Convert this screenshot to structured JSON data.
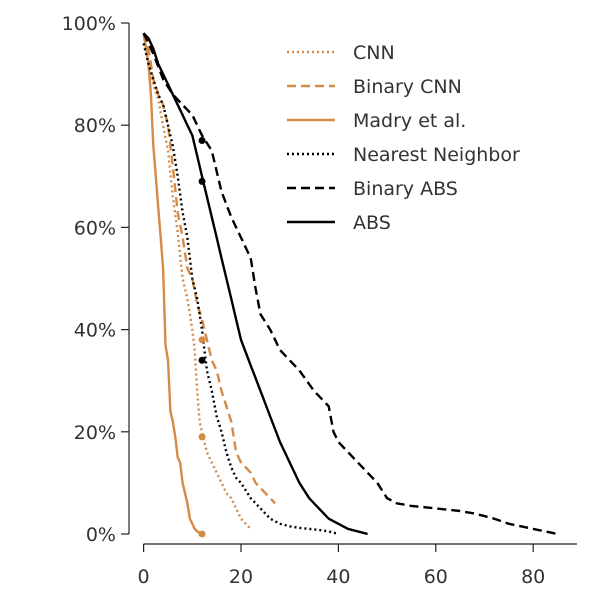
{
  "chart_data": {
    "type": "line",
    "title": "",
    "xlabel": "",
    "ylabel": "",
    "xlim": [
      -3,
      89
    ],
    "ylim": [
      0,
      100
    ],
    "x_ticks": [
      0,
      20,
      40,
      60,
      80
    ],
    "x_tick_labels": [
      "0",
      "20",
      "40",
      "60",
      "80"
    ],
    "y_ticks": [
      0,
      20,
      40,
      60,
      80,
      100
    ],
    "y_tick_labels": [
      "0%",
      "20%",
      "40%",
      "60%",
      "80%",
      "100%"
    ],
    "grid": false,
    "legend_position": "top-right",
    "series": [
      {
        "name": "CNN",
        "color": "#d58a45",
        "dash": "dotted",
        "x": [
          0,
          1,
          2,
          3,
          4,
          5,
          6,
          7,
          8,
          9,
          10,
          10.5,
          11,
          11.5,
          12,
          12.5,
          13,
          14,
          15,
          16,
          17,
          18,
          19,
          20,
          21,
          22
        ],
        "y": [
          98,
          92,
          88,
          85,
          80,
          75,
          66,
          59,
          50,
          46,
          40,
          36,
          28,
          22,
          20,
          18,
          16,
          14,
          12,
          10,
          8,
          7,
          5,
          3,
          2,
          1
        ]
      },
      {
        "name": "Binary CNN",
        "color": "#d58a45",
        "dash": "dashed",
        "x": [
          0,
          1,
          2,
          3,
          4,
          5,
          6,
          7,
          8,
          9,
          10,
          11,
          12,
          13,
          14,
          15,
          16,
          17,
          18,
          19,
          20,
          21,
          22,
          23,
          24,
          25,
          26,
          27
        ],
        "y": [
          98,
          95,
          89,
          86,
          84,
          80,
          72,
          63,
          58,
          52,
          50,
          45,
          42,
          38,
          34,
          32,
          28,
          25,
          22,
          16,
          14,
          13,
          12,
          10,
          9,
          8,
          7,
          6
        ]
      },
      {
        "name": "Madry et al.",
        "color": "#d58a45",
        "dash": "solid",
        "x": [
          0,
          1,
          1.5,
          2,
          2.5,
          3,
          3.5,
          4,
          4.5,
          5,
          5.5,
          6,
          6.5,
          7,
          7.5,
          8,
          8.5,
          9,
          9.5,
          10,
          10.5,
          11,
          12
        ],
        "y": [
          98,
          92,
          86,
          76,
          70,
          64,
          58,
          52,
          37,
          34,
          24,
          22,
          19,
          15,
          14,
          10,
          8,
          6,
          3,
          2,
          1,
          0.5,
          0
        ]
      },
      {
        "name": "Nearest Neighbor",
        "color": "#000000",
        "dash": "dotted",
        "x": [
          0,
          1,
          2,
          3,
          4,
          5,
          6,
          7,
          8,
          9,
          10,
          11,
          12,
          13,
          14,
          15,
          16,
          17,
          18,
          19,
          20,
          22,
          24,
          26,
          28,
          30,
          32,
          34,
          36,
          38,
          40
        ],
        "y": [
          96,
          92,
          89,
          86,
          84,
          80,
          76,
          70,
          63,
          58,
          50,
          46,
          40,
          32,
          28,
          23,
          20,
          16,
          13,
          11,
          10,
          7,
          5,
          3,
          2,
          1.5,
          1.2,
          1,
          0.8,
          0.5,
          0
        ]
      },
      {
        "name": "Binary ABS",
        "color": "#000000",
        "dash": "dashed",
        "x": [
          0,
          2,
          4,
          6,
          8,
          10,
          12,
          14,
          16,
          18,
          20,
          22,
          23,
          24,
          26,
          28,
          30,
          32,
          35,
          38,
          39,
          40,
          42,
          45,
          48,
          50,
          52,
          55,
          60,
          65,
          68,
          70,
          72,
          75,
          80,
          85
        ],
        "y": [
          98,
          94,
          89,
          86,
          84,
          82,
          78,
          75,
          67,
          62,
          58,
          54,
          48,
          43,
          40,
          36,
          34,
          32,
          28,
          25,
          20,
          18,
          16,
          13,
          10,
          7,
          6,
          5.5,
          5,
          4.5,
          4,
          3.5,
          3,
          2,
          1,
          0
        ]
      },
      {
        "name": "ABS",
        "color": "#000000",
        "dash": "solid",
        "x": [
          0,
          1,
          2,
          3,
          4,
          5,
          6,
          7,
          8,
          9,
          10,
          11,
          12,
          13,
          14,
          15,
          16,
          17,
          18,
          19,
          20,
          22,
          24,
          26,
          28,
          30,
          32,
          34,
          36,
          38,
          40,
          42,
          44,
          46
        ],
        "y": [
          98,
          97,
          95,
          92,
          90,
          88,
          86,
          84,
          82,
          80,
          78,
          74,
          70,
          66,
          62,
          58,
          54,
          50,
          46,
          42,
          38,
          33,
          28,
          23,
          18,
          14,
          10,
          7,
          5,
          3,
          2,
          1,
          0.5,
          0
        ]
      }
    ],
    "markers": [
      {
        "x": 12,
        "y": 38,
        "color": "#d58a45"
      },
      {
        "x": 12,
        "y": 19,
        "color": "#d58a45"
      },
      {
        "x": 12,
        "y": 0,
        "color": "#d58a45"
      },
      {
        "x": 12,
        "y": 77,
        "color": "#000000"
      },
      {
        "x": 12,
        "y": 69,
        "color": "#000000"
      },
      {
        "x": 12,
        "y": 34,
        "color": "#000000"
      }
    ]
  }
}
